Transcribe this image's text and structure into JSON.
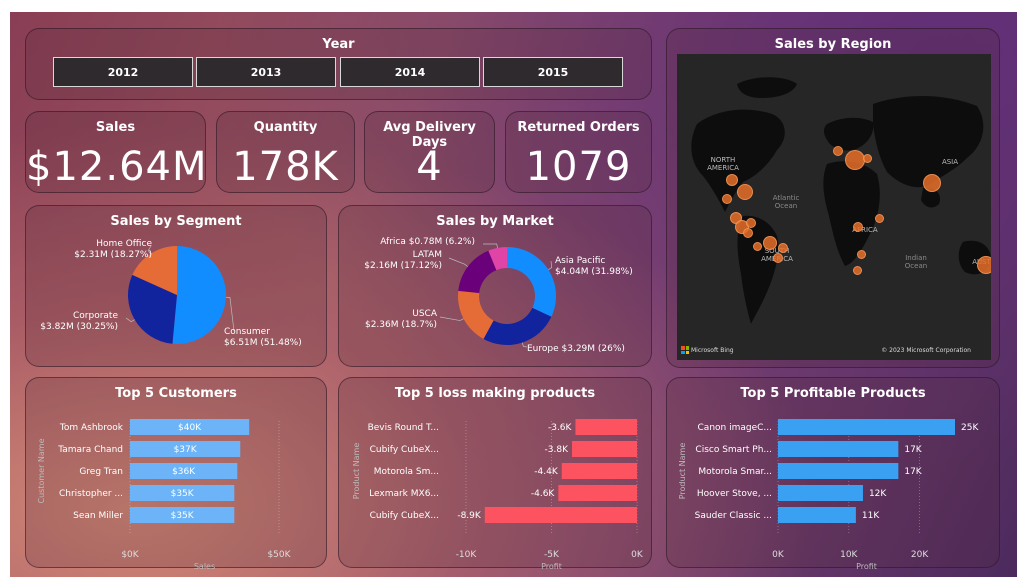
{
  "year_slicer": {
    "title": "Year",
    "years": [
      "2012",
      "2013",
      "2014",
      "2015"
    ]
  },
  "kpis": [
    {
      "title": "Sales",
      "value": "$12.64M"
    },
    {
      "title": "Quantity",
      "value": "178K"
    },
    {
      "title": "Avg Delivery Days",
      "value": "4"
    },
    {
      "title": "Returned Orders",
      "value": "1079"
    }
  ],
  "region_map": {
    "title": "Sales by Region",
    "continent_labels": [
      "NORTH AMERICA",
      "SOUTH AMERICA",
      "AFRICA",
      "ASIA",
      "AUSTR"
    ],
    "ocean_labels": [
      "Atlantic Ocean",
      "Indian Ocean"
    ],
    "provider": "Microsoft Bing",
    "copyright": "© 2023 Microsoft Corporation"
  },
  "colors": {
    "blue_light": "#3da7ff",
    "blue_dark": "#12239e",
    "orange": "#e66c37",
    "purple": "#6b007b",
    "magenta": "#e044a7",
    "customer_bar": "#6cb4f7",
    "loss_bar": "#fd5360",
    "profit_bar": "#3aa0f2"
  },
  "chart_data": [
    {
      "type": "pie",
      "title": "Sales by Segment",
      "slices": [
        {
          "label": "Consumer",
          "value_label": "$6.51M (51.48%)",
          "value": 6.51,
          "percent": 51.48,
          "color": "#118dff"
        },
        {
          "label": "Corporate",
          "value_label": "$3.82M (30.25%)",
          "value": 3.82,
          "percent": 30.25,
          "color": "#12239e"
        },
        {
          "label": "Home Office",
          "value_label": "$2.31M (18.27%)",
          "value": 2.31,
          "percent": 18.27,
          "color": "#e66c37"
        }
      ]
    },
    {
      "type": "pie",
      "title": "Sales by Market",
      "donut": true,
      "slices": [
        {
          "label": "Asia Pacific",
          "value_label": "$4.04M (31.98%)",
          "value": 4.04,
          "percent": 31.98,
          "color": "#118dff"
        },
        {
          "label": "Europe",
          "value_label": "$3.29M (26%)",
          "value": 3.29,
          "percent": 26,
          "color": "#12239e"
        },
        {
          "label": "USCA",
          "value_label": "$2.36M (18.7%)",
          "value": 2.36,
          "percent": 18.7,
          "color": "#e66c37"
        },
        {
          "label": "LATAM",
          "value_label": "$2.16M (17.12%)",
          "value": 2.16,
          "percent": 17.12,
          "color": "#6b007b"
        },
        {
          "label": "Africa",
          "value_label": "$0.78M (6.2%)",
          "value": 0.78,
          "percent": 6.2,
          "color": "#e044a7"
        }
      ]
    },
    {
      "type": "bar",
      "orientation": "horizontal",
      "title": "Top 5 Customers",
      "categories": [
        "Tom Ashbrook",
        "Tamara Chand",
        "Greg Tran",
        "Christopher ...",
        "Sean Miller"
      ],
      "values": [
        40,
        37,
        36,
        35,
        35
      ],
      "data_labels": [
        "$40K",
        "$37K",
        "$36K",
        "$35K",
        "$35K"
      ],
      "xlabel": "Sales",
      "ylabel": "Customer Name",
      "xlim": [
        0,
        50
      ],
      "x_ticks": [
        "$0K",
        "$50K"
      ]
    },
    {
      "type": "bar",
      "orientation": "horizontal",
      "title": "Top 5 loss making products",
      "categories": [
        "Bevis Round T...",
        "Cubify CubeX...",
        "Motorola Sm...",
        "Lexmark MX6...",
        "Cubify CubeX..."
      ],
      "values": [
        -3.6,
        -3.8,
        -4.4,
        -4.6,
        -8.9
      ],
      "data_labels": [
        "-3.6K",
        "-3.8K",
        "-4.4K",
        "-4.6K",
        "-8.9K"
      ],
      "xlabel": "Profit",
      "ylabel": "Product Name",
      "xlim": [
        -10,
        0
      ],
      "x_ticks": [
        "-10K",
        "-5K",
        "0K"
      ]
    },
    {
      "type": "bar",
      "orientation": "horizontal",
      "title": "Top 5 Profitable Products",
      "categories": [
        "Canon imageC...",
        "Cisco Smart Ph...",
        "Motorola Smar...",
        "Hoover Stove, ...",
        "Sauder Classic ..."
      ],
      "values": [
        25,
        17,
        17,
        12,
        11
      ],
      "data_labels": [
        "25K",
        "17K",
        "17K",
        "12K",
        "11K"
      ],
      "xlabel": "Profit",
      "ylabel": "Product Name",
      "xlim": [
        0,
        25
      ],
      "x_ticks": [
        "0K",
        "10K",
        "20K"
      ]
    }
  ]
}
